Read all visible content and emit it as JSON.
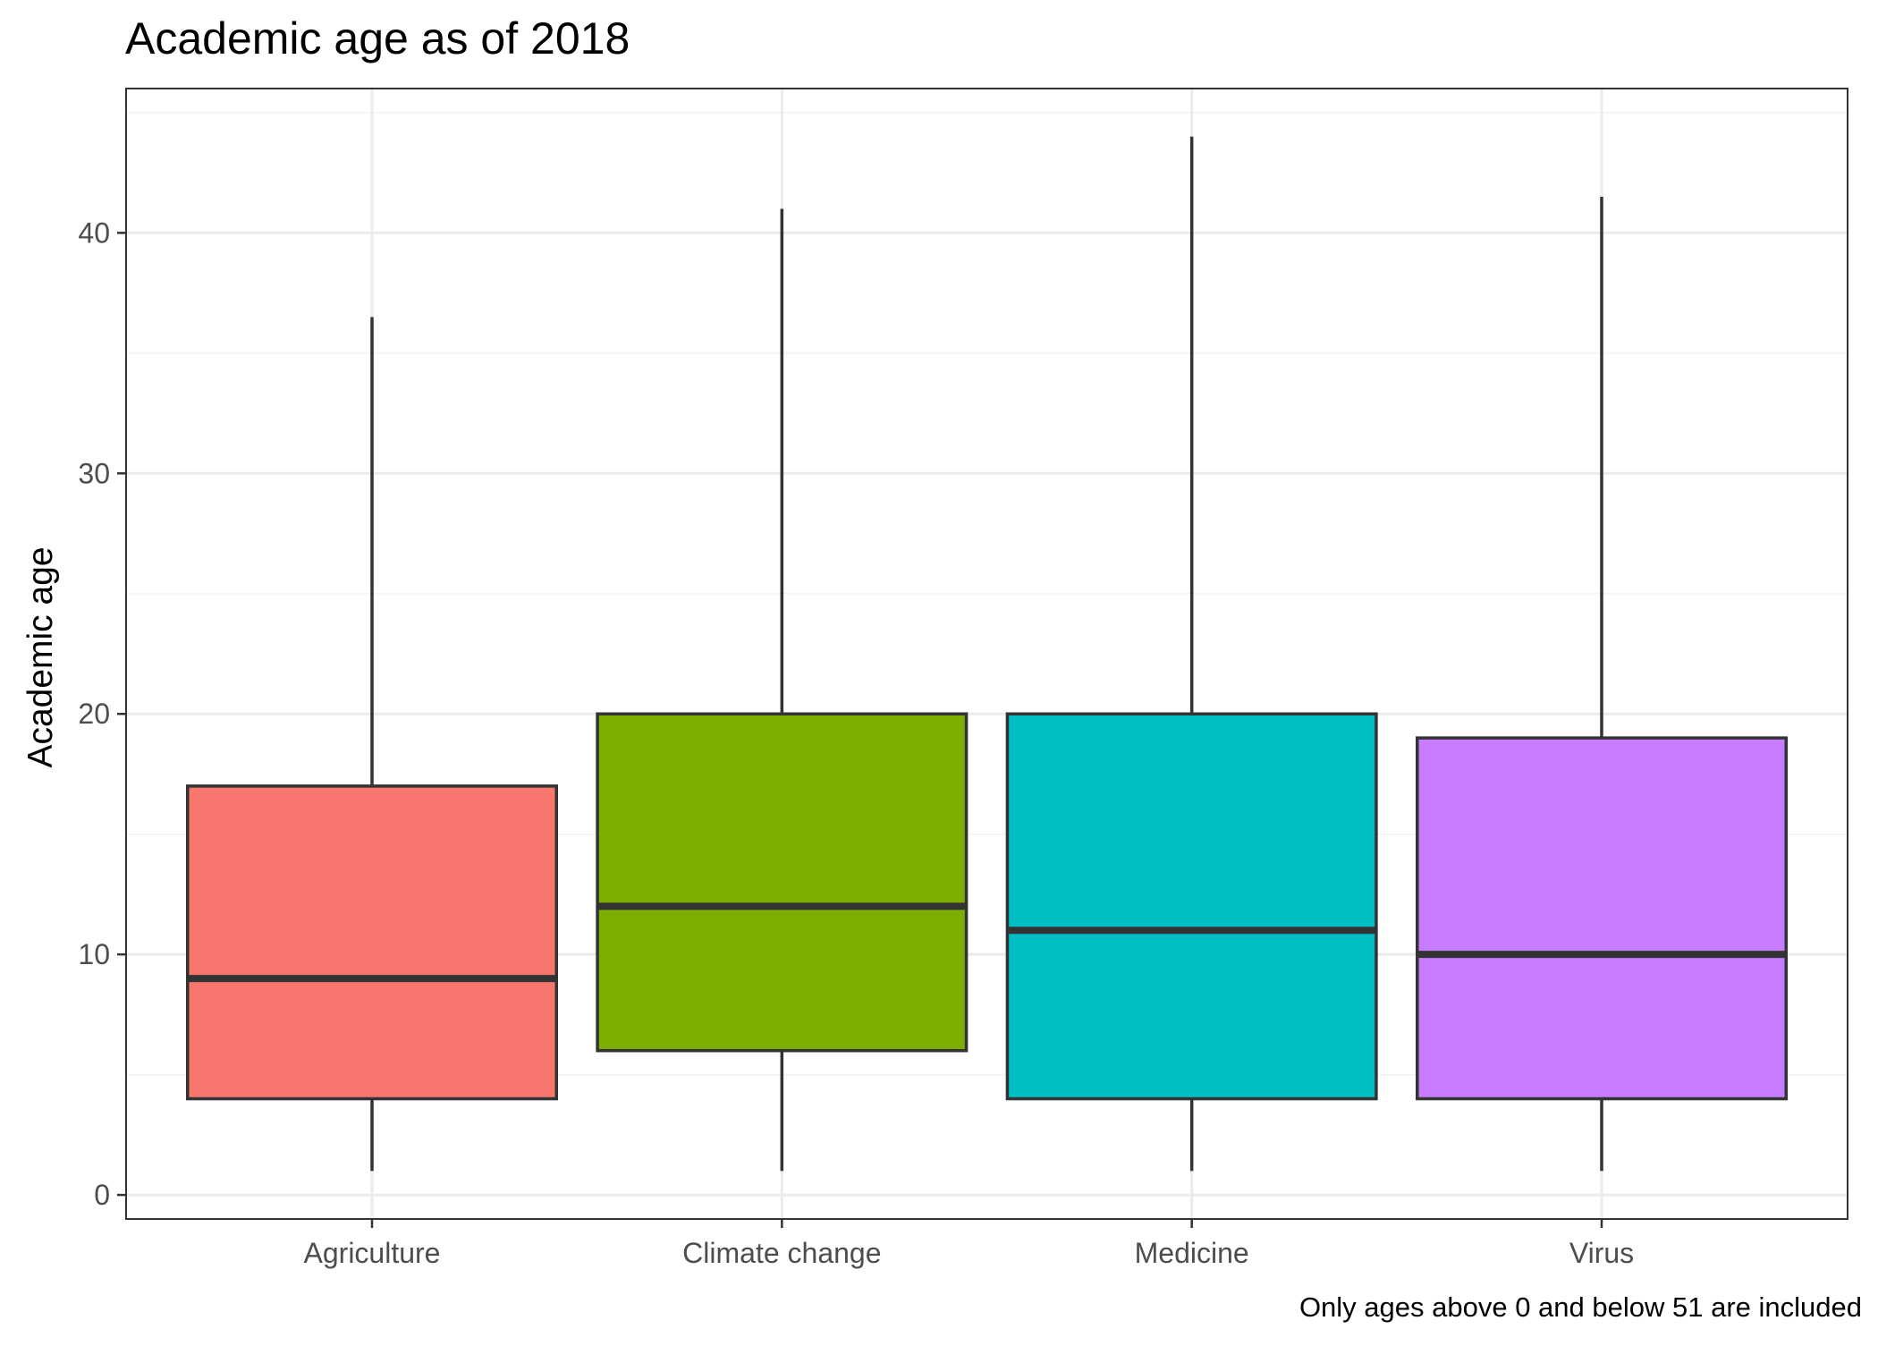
{
  "chart_data": {
    "type": "boxplot",
    "title": "Academic age as of 2018",
    "xlabel": "",
    "ylabel": "Academic age",
    "caption": "Only ages above 0 and below 51 are included",
    "categories": [
      "Agriculture",
      "Climate change",
      "Medicine",
      "Virus"
    ],
    "ylim": [
      -1,
      46
    ],
    "yticks": [
      0,
      10,
      20,
      30,
      40
    ],
    "grid": true,
    "legend": "none",
    "boxes": [
      {
        "category": "Agriculture",
        "min": 1,
        "q1": 4,
        "median": 9,
        "q3": 17,
        "max": 36.5,
        "color": "#F8766D"
      },
      {
        "category": "Climate change",
        "min": 1,
        "q1": 6,
        "median": 12,
        "q3": 20,
        "max": 41,
        "color": "#7CAE00"
      },
      {
        "category": "Medicine",
        "min": 1,
        "q1": 4,
        "median": 11,
        "q3": 20,
        "max": 44,
        "color": "#00BFC4"
      },
      {
        "category": "Virus",
        "min": 1,
        "q1": 4,
        "median": 10,
        "q3": 19,
        "max": 41.5,
        "color": "#C77CFF"
      }
    ],
    "colors": {
      "panel_border": "#333333",
      "grid_major": "#ebebeb",
      "grid_minor": "#f3f3f3",
      "box_outline": "#333333"
    }
  }
}
